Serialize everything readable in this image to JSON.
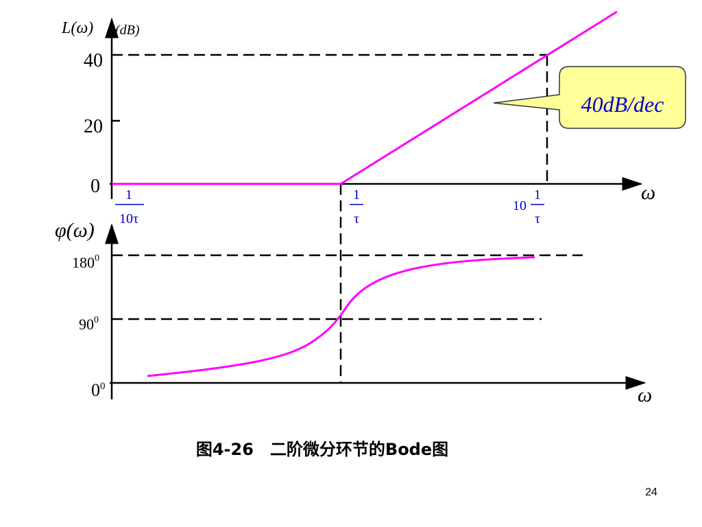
{
  "upper": {
    "y_label": "L(ω)",
    "y_unit": "(dB)",
    "y_ticks": [
      "40",
      "20",
      "0"
    ],
    "x_ticks": [
      {
        "numerator": "1",
        "denominator": "10τ"
      },
      {
        "numerator": "1",
        "denominator": "τ"
      },
      {
        "prefix": "10",
        "numerator": "1",
        "denominator": "τ"
      }
    ],
    "x_label": "ω",
    "callout": "40dB/dec"
  },
  "lower": {
    "y_label": "φ(ω)",
    "y_ticks": [
      {
        "base": "180",
        "sup": "0"
      },
      {
        "base": "90",
        "sup": "0"
      },
      {
        "base": "0",
        "sup": "0"
      }
    ],
    "x_label": "ω"
  },
  "caption": "图4-26　二阶微分环节的Bode图",
  "page_number": "24"
}
